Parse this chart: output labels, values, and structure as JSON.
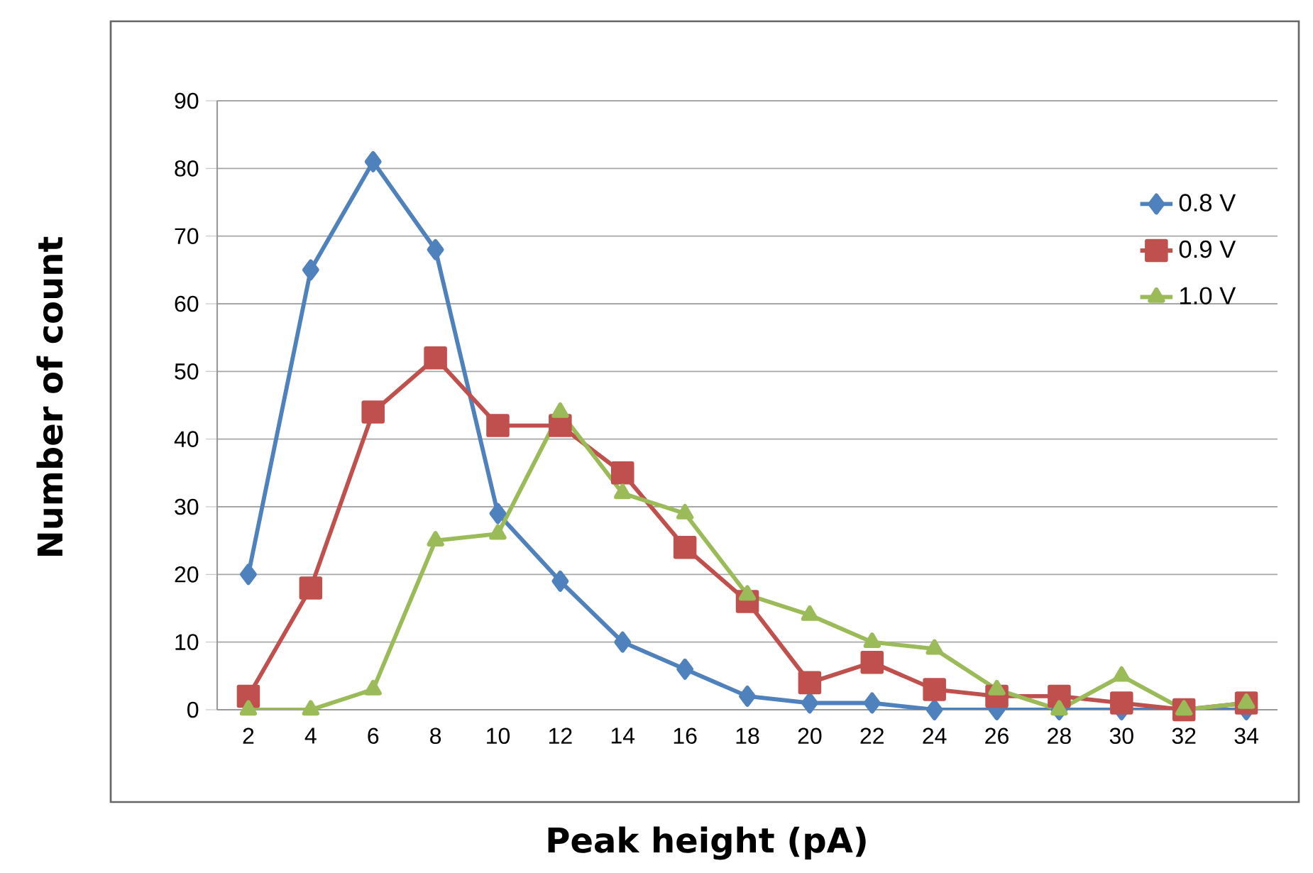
{
  "chart_data": {
    "type": "line",
    "xlabel": "Peak height (pA)",
    "ylabel": "Number of count",
    "categories": [
      "2",
      "4",
      "6",
      "8",
      "10",
      "12",
      "14",
      "16",
      "18",
      "20",
      "22",
      "24",
      "26",
      "28",
      "30",
      "32",
      "34"
    ],
    "series": [
      {
        "name": "0.8 V",
        "color": "#4f81bd",
        "marker": "diamond",
        "values": [
          20,
          65,
          81,
          68,
          29,
          19,
          10,
          6,
          2,
          1,
          1,
          0,
          0,
          0,
          0,
          0,
          0
        ]
      },
      {
        "name": "0.9 V",
        "color": "#c0504d",
        "marker": "square",
        "values": [
          2,
          18,
          44,
          52,
          42,
          42,
          35,
          24,
          16,
          4,
          7,
          3,
          2,
          2,
          1,
          0,
          1
        ]
      },
      {
        "name": "1.0 V",
        "color": "#9bbb59",
        "marker": "triangle",
        "values": [
          0,
          0,
          3,
          25,
          26,
          44,
          32,
          29,
          17,
          14,
          10,
          9,
          3,
          0,
          5,
          0,
          1
        ]
      }
    ],
    "ylim": [
      0,
      90
    ],
    "yticks": [
      0,
      10,
      20,
      30,
      40,
      50,
      60,
      70,
      80,
      90
    ],
    "grid": "y",
    "legend": "top right",
    "line_style": "solid"
  }
}
